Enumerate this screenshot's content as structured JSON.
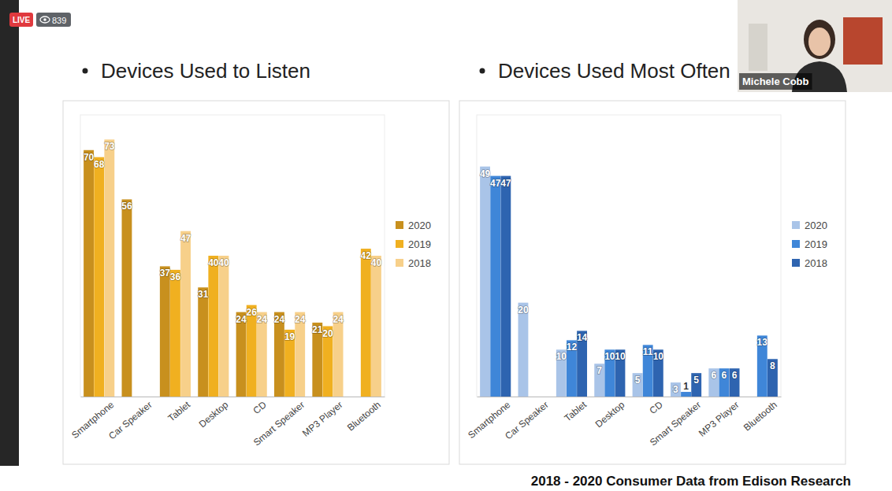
{
  "header": {
    "badge": "LIVE",
    "viewers": 839
  },
  "presenter": {
    "name": "Michele Cobb"
  },
  "chart_data": [
    {
      "type": "bar",
      "title": "Devices Used to Listen",
      "categories": [
        "Smartphone",
        "Car Speaker",
        "Tablet",
        "Desktop",
        "CD",
        "Smart Speaker",
        "MP3 Player",
        "Bluetooth"
      ],
      "series": [
        {
          "name": "2020",
          "color": "#c8901e",
          "values": [
            70,
            56,
            37,
            31,
            24,
            24,
            21,
            null
          ]
        },
        {
          "name": "2019",
          "color": "#f0b020",
          "values": [
            68,
            null,
            36,
            40,
            26,
            19,
            20,
            42
          ]
        },
        {
          "name": "2018",
          "color": "#f7d08a",
          "values": [
            73,
            null,
            47,
            40,
            24,
            24,
            24,
            40
          ]
        }
      ],
      "ylim": [
        0,
        80
      ],
      "data_labels": true,
      "legend": "right",
      "tick_labels": "x"
    },
    {
      "type": "bar",
      "title": "Devices Used Most Often",
      "categories": [
        "Smartphone",
        "Car Speaker",
        "Tablet",
        "Desktop",
        "CD",
        "Smart Speaker",
        "MP3 Player",
        "Bluetooth"
      ],
      "series": [
        {
          "name": "2020",
          "color": "#a9c4e8",
          "values": [
            49,
            20,
            10,
            7,
            5,
            3,
            6,
            null
          ]
        },
        {
          "name": "2019",
          "color": "#3f86d8",
          "values": [
            47,
            null,
            12,
            10,
            11,
            1,
            6,
            13
          ]
        },
        {
          "name": "2018",
          "color": "#2e64b0",
          "values": [
            47,
            null,
            14,
            10,
            10,
            5,
            6,
            8
          ]
        }
      ],
      "ylim": [
        0,
        60
      ],
      "data_labels": true,
      "legend": "right",
      "tick_labels": "x"
    }
  ],
  "footer": "2018 - 2020 Consumer Data from Edison Research"
}
